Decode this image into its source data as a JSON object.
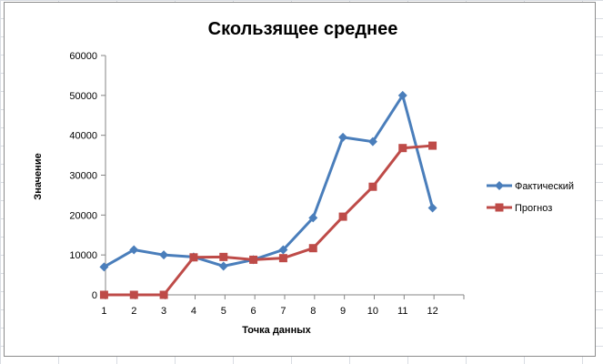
{
  "chart_data": {
    "type": "line",
    "title": "Скользящее среднее",
    "xlabel": "Точка данных",
    "ylabel": "Значение",
    "x": [
      1,
      2,
      3,
      4,
      5,
      6,
      7,
      8,
      9,
      10,
      11,
      12
    ],
    "ylim": [
      0,
      60000
    ],
    "yticks": [
      0,
      10000,
      20000,
      30000,
      40000,
      50000,
      60000
    ],
    "grid": false,
    "legend_position": "right",
    "series": [
      {
        "name": "Фактический",
        "color": "#4a7ebb",
        "marker": "diamond",
        "values": [
          7000,
          11300,
          10000,
          9500,
          7200,
          8800,
          11300,
          19300,
          39500,
          38400,
          50000,
          21800
        ]
      },
      {
        "name": "Прогноз",
        "color": "#be4b48",
        "marker": "square",
        "values": [
          0,
          0,
          0,
          9400,
          9500,
          8800,
          9200,
          11700,
          19600,
          27100,
          36800,
          37400
        ]
      }
    ]
  }
}
